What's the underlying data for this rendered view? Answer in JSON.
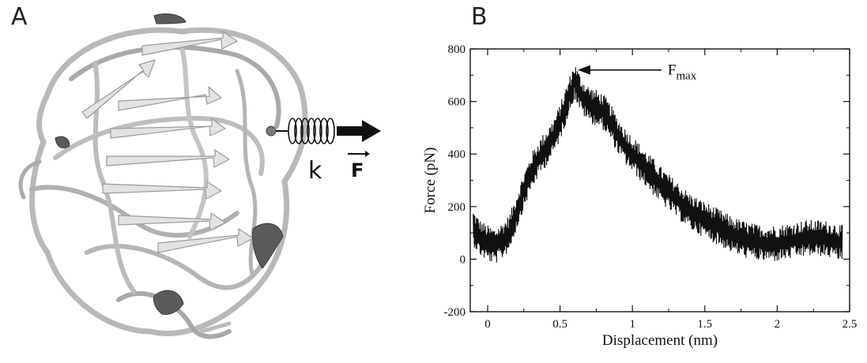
{
  "panels": {
    "a_label": "A",
    "b_label": "B"
  },
  "protein_figure": {
    "spring_label": "k",
    "force_label": "F",
    "colors": {
      "ribbon": "#c9c9c9",
      "ribbon_dark": "#5a5a5a",
      "outline": "#8a8a8a",
      "arrow": "#111111"
    }
  },
  "chart_data": {
    "type": "line",
    "title": "",
    "xlabel": "Displacement (nm)",
    "ylabel": "Force (pN)",
    "xlim": [
      -0.12,
      2.5
    ],
    "ylim": [
      -200,
      800
    ],
    "xticks": [
      0,
      0.5,
      1,
      1.5,
      2,
      2.5
    ],
    "xtick_labels": [
      "0",
      "0.5",
      "1",
      "1.5",
      "2",
      "2.5"
    ],
    "yticks": [
      -200,
      0,
      200,
      400,
      600,
      800
    ],
    "ytick_labels": [
      "-200",
      "0",
      "200",
      "400",
      "600",
      "800"
    ],
    "grid": false,
    "annotation": {
      "text": "F",
      "subscript": "max",
      "x": 0.6,
      "y": 720
    },
    "series": [
      {
        "x": [
          -0.1,
          -0.05,
          0.0,
          0.05,
          0.1,
          0.15,
          0.2,
          0.25,
          0.3,
          0.35,
          0.4,
          0.45,
          0.5,
          0.55,
          0.6,
          0.65,
          0.7,
          0.75,
          0.8,
          0.85,
          0.9,
          0.95,
          1.0,
          1.1,
          1.2,
          1.3,
          1.4,
          1.5,
          1.6,
          1.7,
          1.8,
          1.9,
          2.0,
          2.1,
          2.2,
          2.3,
          2.4,
          2.45
        ],
        "y": [
          120,
          80,
          60,
          50,
          70,
          100,
          180,
          260,
          330,
          380,
          420,
          460,
          520,
          600,
          680,
          620,
          590,
          575,
          560,
          520,
          470,
          430,
          400,
          340,
          280,
          230,
          180,
          150,
          120,
          90,
          70,
          60,
          60,
          70,
          80,
          80,
          70,
          60
        ]
      }
    ]
  }
}
